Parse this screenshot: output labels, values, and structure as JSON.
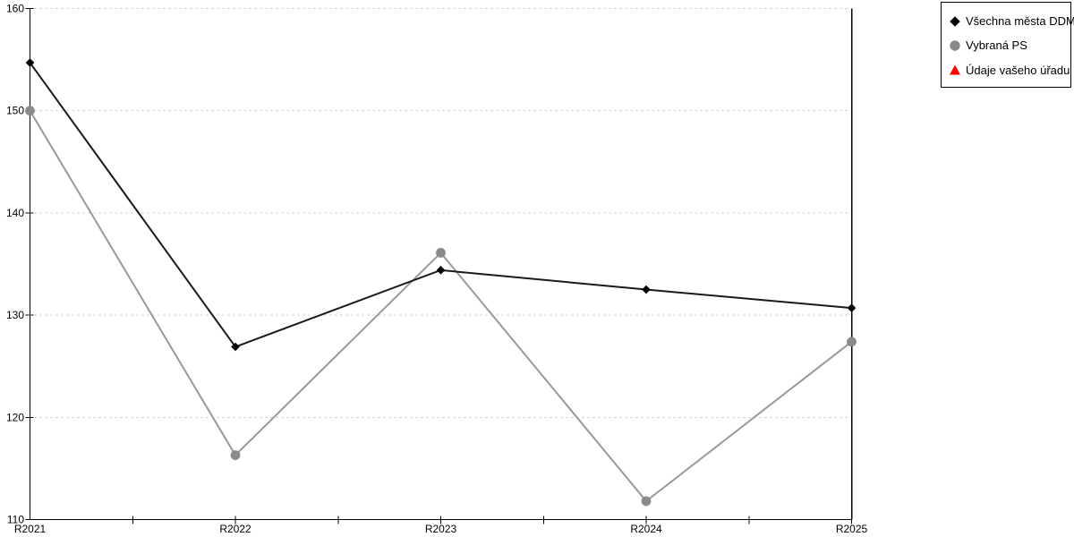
{
  "chart_data": {
    "type": "line",
    "title": "",
    "xlabel": "",
    "ylabel": "",
    "categories": [
      "R2021",
      "R2022",
      "R2023",
      "R2024",
      "R2025"
    ],
    "series": [
      {
        "id": "vsechna-mesta-ddm",
        "name": "Všechna města DDM",
        "color": "#1a1a1a",
        "marker": "diamond",
        "marker_color": "#000000",
        "values": [
          154.7,
          126.9,
          134.4,
          132.5,
          130.7
        ]
      },
      {
        "id": "vybrana-ps",
        "name": "Vybraná PS",
        "color": "#999999",
        "marker": "circle",
        "marker_color": "#8a8a8a",
        "values": [
          150.0,
          116.3,
          136.1,
          111.8,
          127.4
        ]
      },
      {
        "id": "udaje-vaseho-uradu",
        "name": "Údaje vašeho úřadu",
        "color": "#ff0000",
        "marker": "triangle",
        "marker_color": "#ff0000",
        "values": []
      }
    ],
    "ylim": [
      110,
      160
    ],
    "yticks": [
      110,
      120,
      130,
      140,
      150,
      160
    ],
    "grid": "horizontal-dashed",
    "grid_color": "#c0c0c0",
    "axis_color": "#000000",
    "background_color": "#ffffff",
    "legend_position": "top-right"
  }
}
